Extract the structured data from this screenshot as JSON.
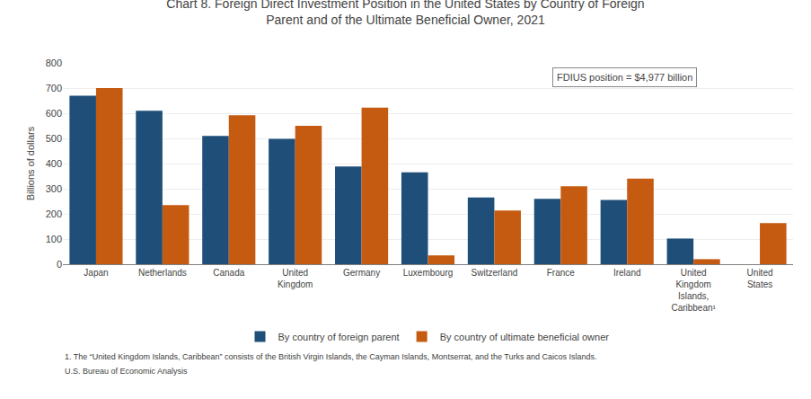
{
  "chart_data": {
    "type": "bar",
    "title": "Chart 8. Foreign Direct Investment Position in the United States by Country of Foreign\nParent and of the Ultimate Beneficial Owner, 2021",
    "ylabel": "Billions of dollars",
    "categories": [
      "Japan",
      "Netherlands",
      "Canada",
      "United\nKingdom",
      "Germany",
      "Luxembourg",
      "Switzerland",
      "France",
      "Ireland",
      "United\nKingdom\nIslands,\nCaribbean¹",
      "United\nStates"
    ],
    "series": [
      {
        "name": "By country of foreign parent",
        "color": "#1f4e79",
        "values": [
          670,
          610,
          510,
          498,
          388,
          365,
          265,
          260,
          255,
          102,
          0
        ]
      },
      {
        "name": "By country of ultimate beneficial owner",
        "color": "#c55a11",
        "values": [
          700,
          235,
          592,
          550,
          622,
          35,
          213,
          310,
          340,
          20,
          163
        ]
      }
    ],
    "annotations": [
      "FDIUS position = $4,977 billion",
      "1. The “United Kingdom Islands, Caribbean” consists of the British Virgin Islands, the Cayman Islands, Montserrat, and the Turks and Caicos Islands.",
      "U.S. Bureau of Economic Analysis"
    ],
    "ylim": [
      0,
      800
    ],
    "yticks": [
      0,
      100,
      200,
      300,
      400,
      500,
      600,
      700,
      800
    ],
    "grid": true,
    "legend": "bottom"
  }
}
